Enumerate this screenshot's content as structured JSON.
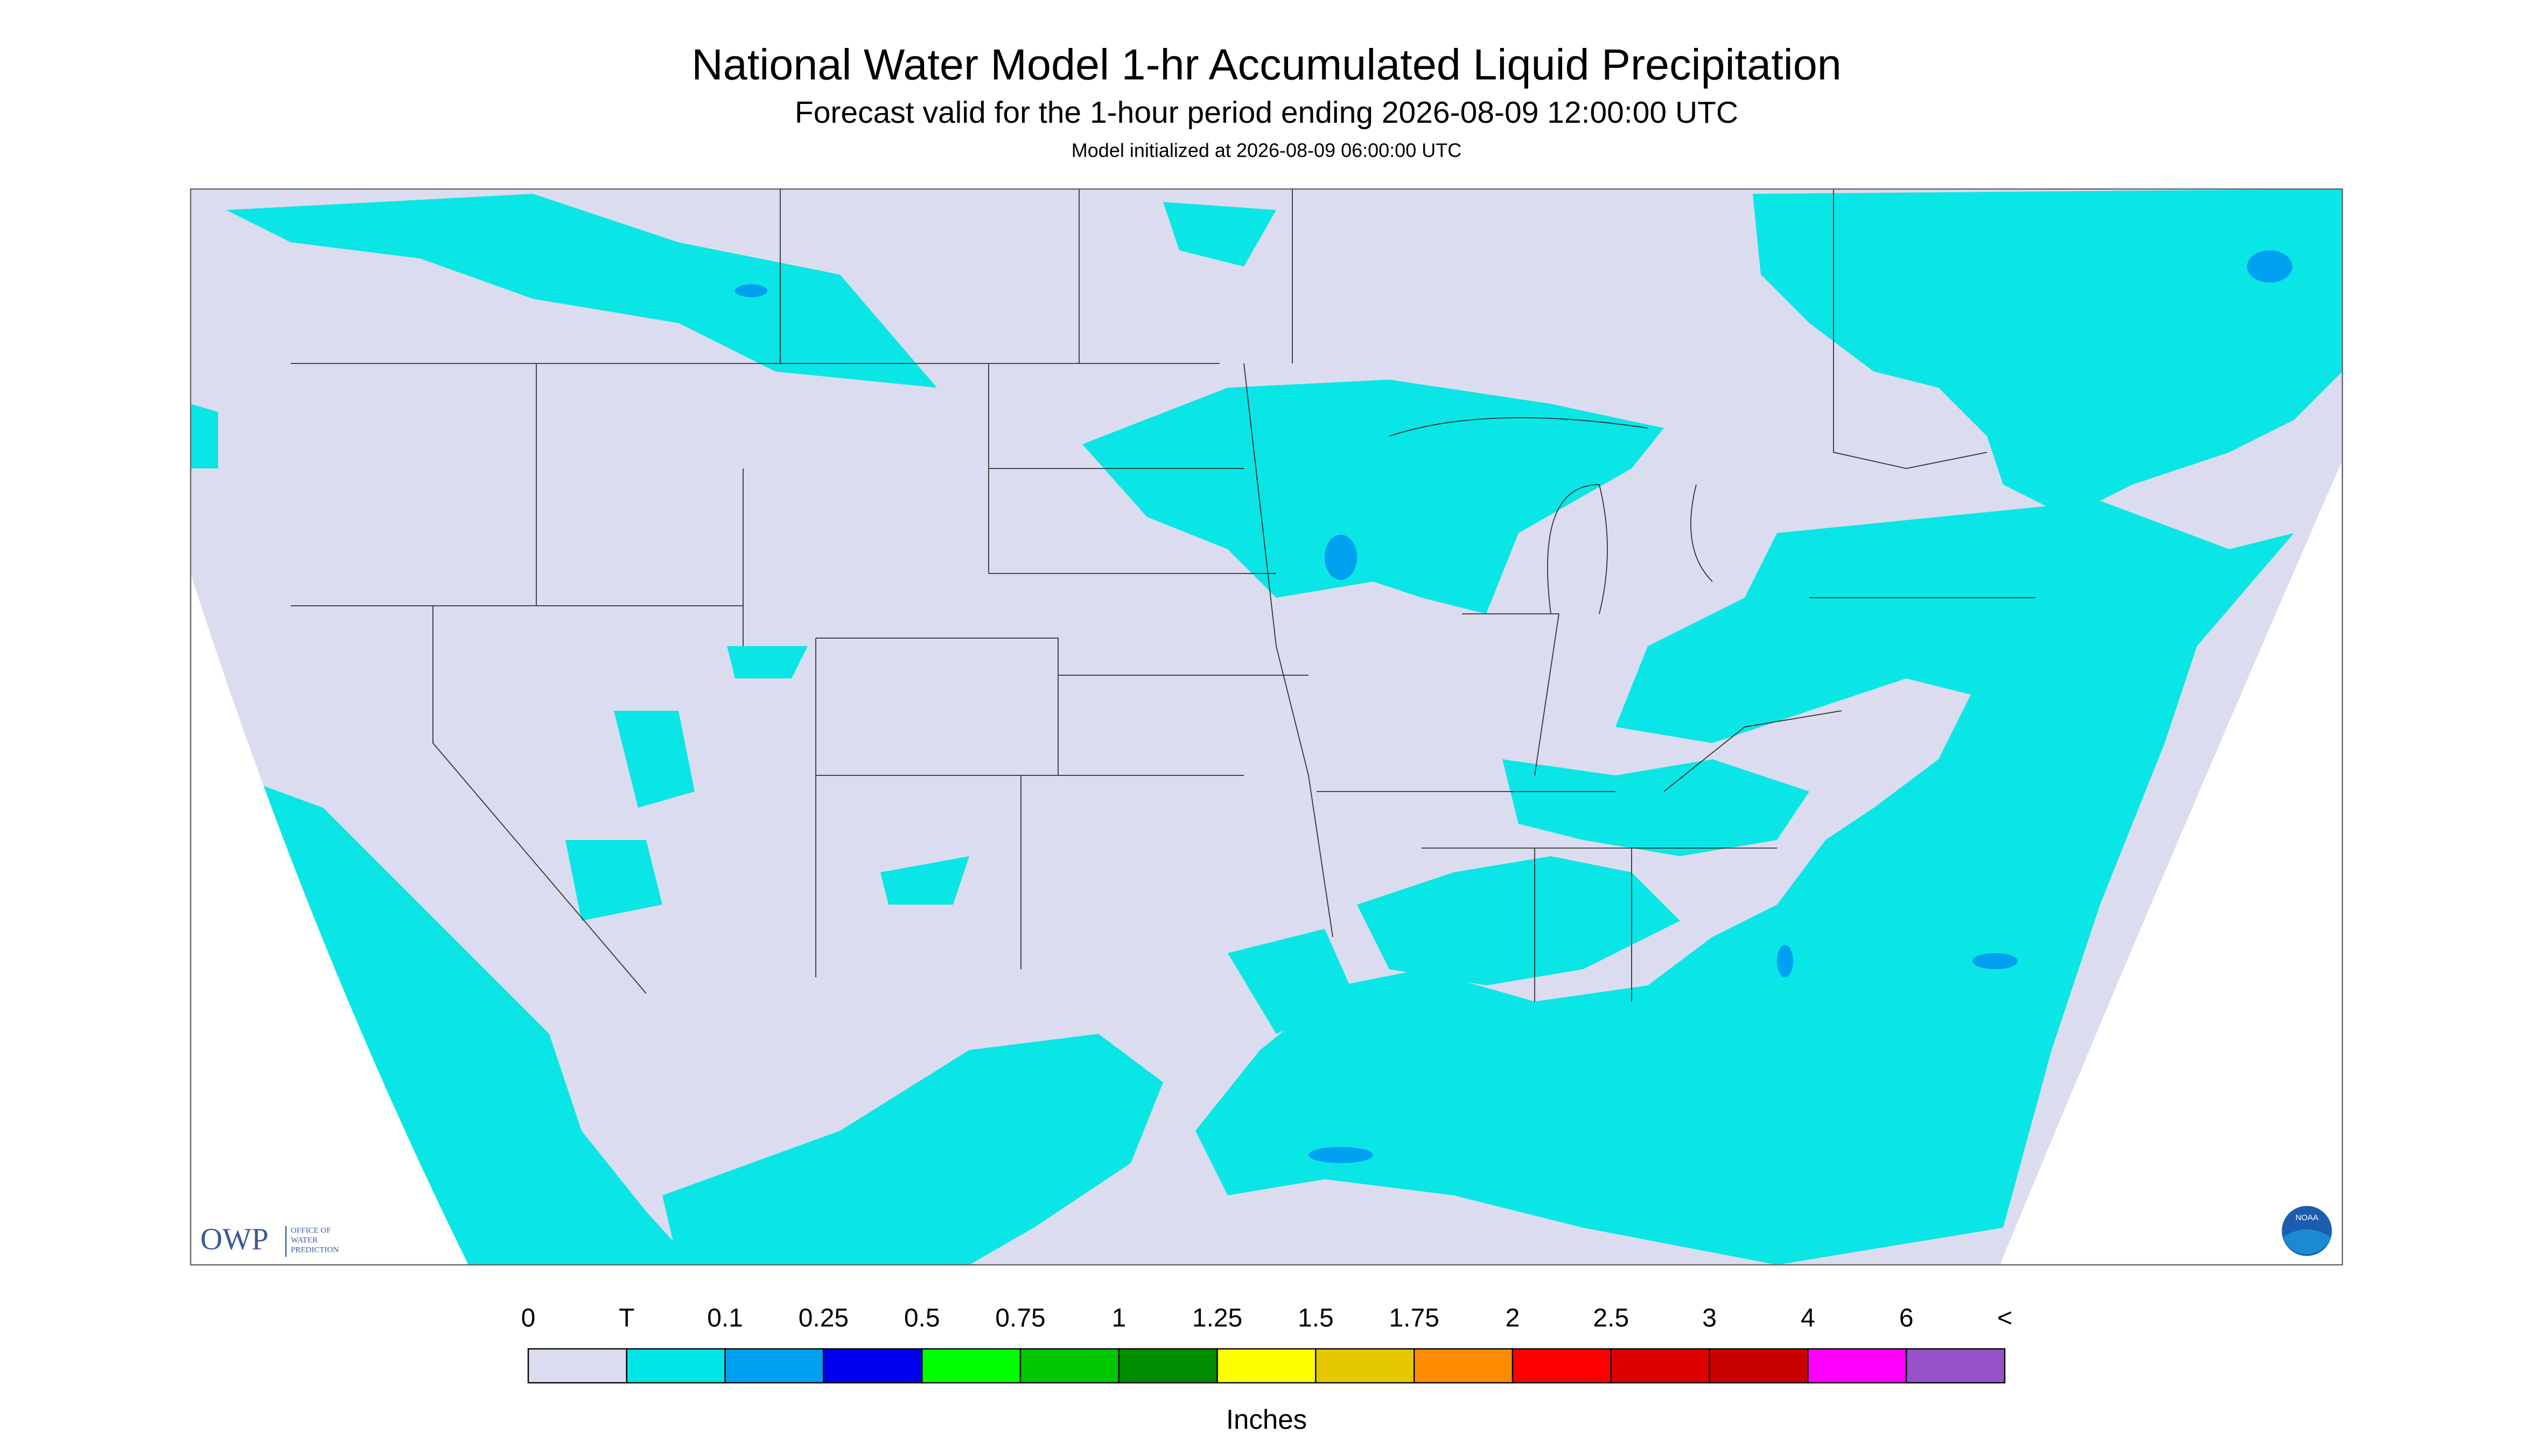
{
  "header": {
    "title": "National Water Model 1-hr Accumulated Liquid Precipitation",
    "subtitle": "Forecast valid for the 1-hour period ending 2026-08-09 12:00:00 UTC",
    "initialized": "Model initialized at 2026-08-09 06:00:00 UTC"
  },
  "logos": {
    "owp": "OWP",
    "owp_lines": [
      "OFFICE OF",
      "WATER",
      "PREDICTION"
    ],
    "noaa": "NOAA"
  },
  "legend": {
    "labels": [
      "0",
      "T",
      "0.1",
      "0.25",
      "0.5",
      "0.75",
      "1",
      "1.25",
      "1.5",
      "1.75",
      "2",
      "2.5",
      "3",
      "4",
      "6",
      "<"
    ],
    "colors": [
      "#dcdcf0",
      "#00e6e6",
      "#00a0f0",
      "#0000f0",
      "#00ff00",
      "#00c800",
      "#008c00",
      "#ffff00",
      "#e6c800",
      "#ff8c00",
      "#ff0000",
      "#dc0000",
      "#c80000",
      "#ff00ff",
      "#9650c8"
    ],
    "unit": "Inches"
  }
}
